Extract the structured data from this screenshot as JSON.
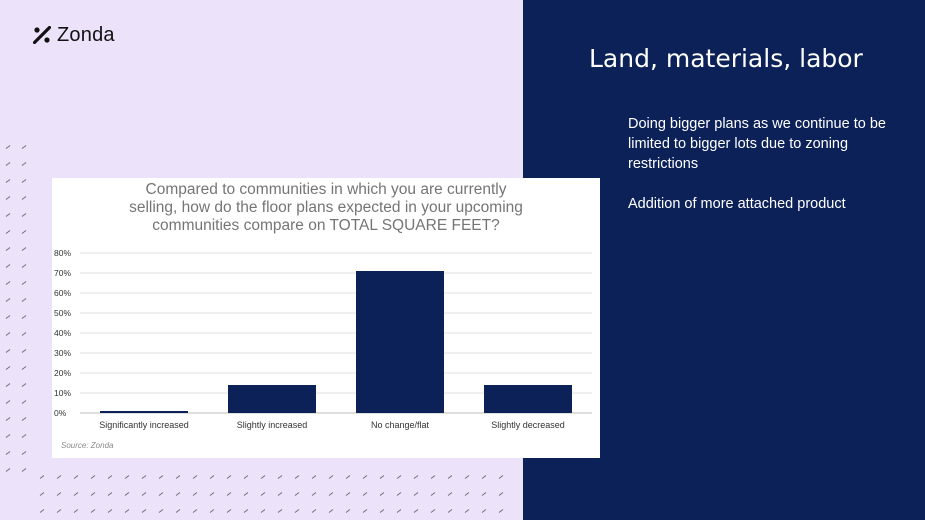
{
  "logo": {
    "text": "Zonda",
    "icon": "zonda-mark-icon"
  },
  "slide": {
    "title": "Land, materials, labor",
    "bullets": [
      "Doing bigger plans as we continue to be limited to bigger lots due to zoning restrictions",
      "Addition of more attached product"
    ]
  },
  "colors": {
    "left_bg": "#ece3fb",
    "right_bg": "#0b2158",
    "bar": "#0b2158",
    "pattern": "#6e6e78"
  },
  "chart_data": {
    "type": "bar",
    "title_lines": [
      "Compared to communities in which you are currently",
      "selling, how do the floor plans expected in your upcoming",
      "communities compare on TOTAL SQUARE FEET?"
    ],
    "categories": [
      "Significantly increased",
      "Slightly increased",
      "No change/flat",
      "Slightly decreased"
    ],
    "values": [
      1,
      14,
      71,
      14
    ],
    "y_ticks": [
      "0%",
      "10%",
      "20%",
      "30%",
      "40%",
      "50%",
      "60%",
      "70%",
      "80%"
    ],
    "ylim": [
      0,
      80
    ],
    "grid": true,
    "legend": "none",
    "source": "Source: Zonda"
  }
}
